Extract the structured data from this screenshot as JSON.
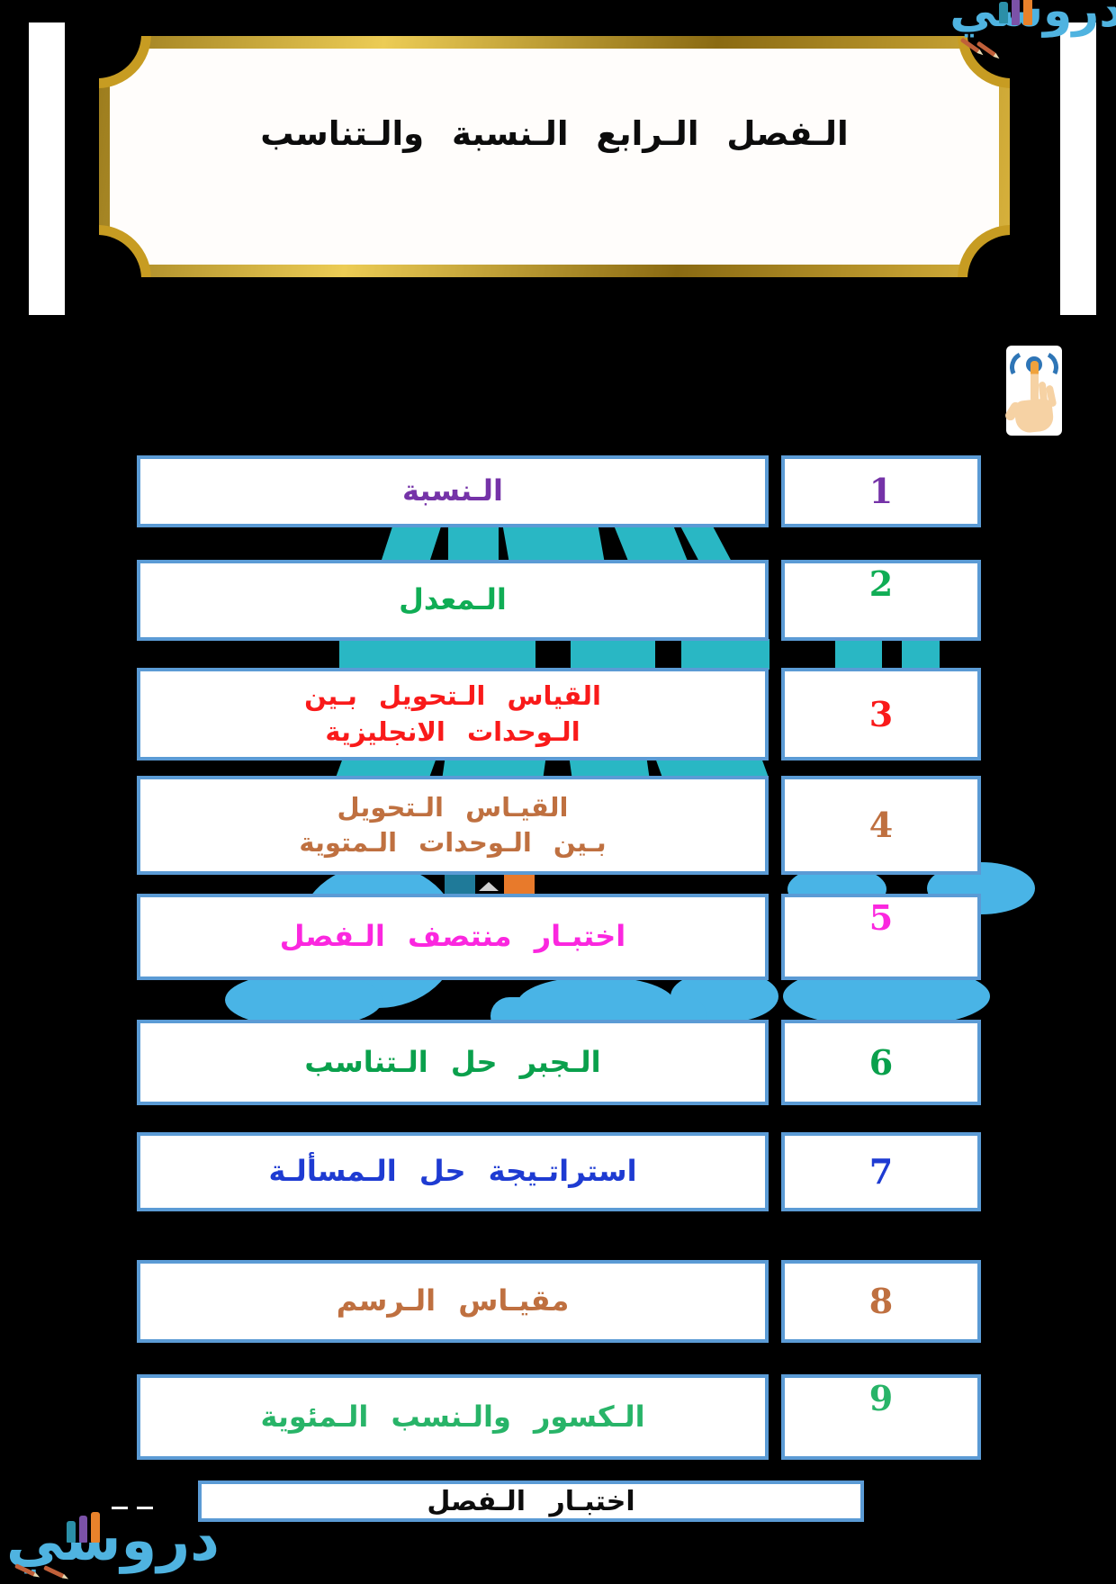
{
  "header": {
    "title": "الـفصل الـرابع  الـنسبة  والـتناسب"
  },
  "logo": {
    "text": "دروسي",
    "color": "#4FB3E0"
  },
  "icons": {
    "tap_icon": "hand-tap-click-indicator",
    "pencils": "pencil-cluster-decoration",
    "teal_ornament": "teal-fan-decoration",
    "blue_blobs": "light-blue-logo-blobs"
  },
  "rows": [
    {
      "number": "1",
      "title": "الـنسبة",
      "color": "#7533A8"
    },
    {
      "number": "2",
      "title": "الـمعدل",
      "color": "#10AD55"
    },
    {
      "number": "3",
      "title": "القياس   الـتحويل  بـين\nالـوحدات الانجليزية",
      "color": "#F91A1A"
    },
    {
      "number": "4",
      "title": "القيـاس   الـتحويل\nبـين الـوحدات الـمتوية",
      "color": "#BF7040"
    },
    {
      "number": "5",
      "title": "اختبـار منتصف الـفصل",
      "color": "#FB27DF"
    },
    {
      "number": "6",
      "title": "الـجبر  حل الـتناسب",
      "color": "#0AA04C"
    },
    {
      "number": "7",
      "title": "استراتـيجة حل الـمسألـة",
      "color": "#1E3BD2"
    },
    {
      "number": "8",
      "title": "مقيـاس   الـرسم",
      "color": "#BF7040"
    },
    {
      "number": "9",
      "title": "الـكسور والـنسب الـمئوية",
      "color": "#28B468"
    }
  ],
  "footer": {
    "chapter_test_label": "اختبـار  الـفصل"
  },
  "colors": {
    "page_background": "#000000",
    "row_border": "#5B9BD5",
    "teal_ornament": "#29B7C4",
    "blue_blob": "#49B4E6",
    "frame_gold": "#D8B23C",
    "tap_ring": "#2E75B6",
    "tap_hand": "#F6D2A4",
    "tap_press": "#F0A23C"
  }
}
